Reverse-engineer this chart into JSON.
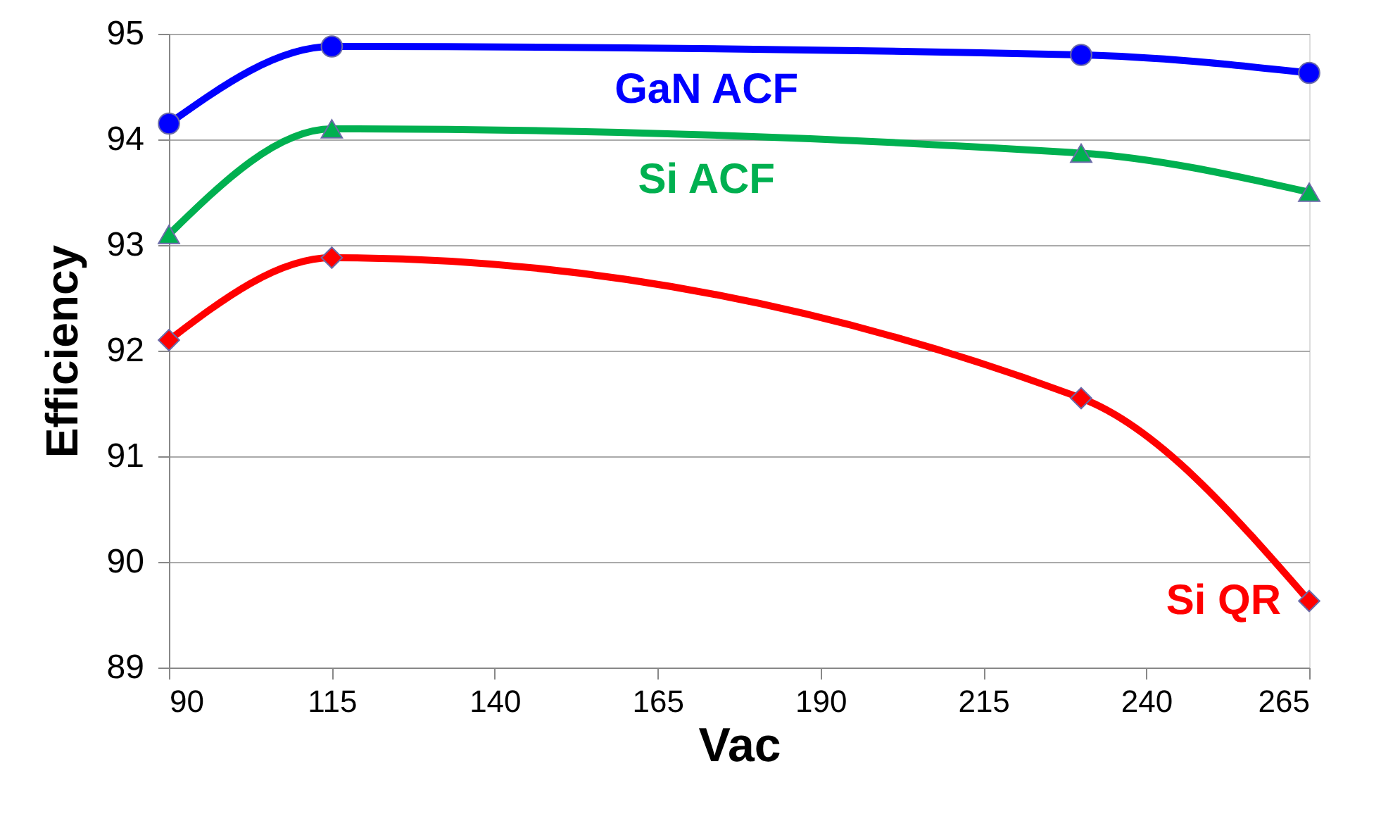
{
  "chart_data": {
    "type": "line",
    "xlabel": "Vac",
    "ylabel": "Efficiency",
    "x": [
      90,
      115,
      230,
      265
    ],
    "xlim": [
      90,
      265
    ],
    "xticks": [
      90,
      115,
      140,
      165,
      190,
      215,
      240,
      265
    ],
    "ylim": [
      89,
      95
    ],
    "yticks": [
      89,
      90,
      91,
      92,
      93,
      94,
      95
    ],
    "grid": "y",
    "line_style": "solid",
    "series": [
      {
        "name": "GaN ACF",
        "color": "#0000ff",
        "marker": "circle",
        "values": [
          94.15,
          94.88,
          94.8,
          94.63
        ]
      },
      {
        "name": "Si ACF",
        "color": "#00b050",
        "marker": "triangle",
        "values": [
          93.1,
          94.1,
          93.87,
          93.5
        ]
      },
      {
        "name": "Si QR",
        "color": "#ff0000",
        "marker": "diamond",
        "values": [
          92.1,
          92.88,
          91.55,
          89.63
        ]
      }
    ]
  }
}
